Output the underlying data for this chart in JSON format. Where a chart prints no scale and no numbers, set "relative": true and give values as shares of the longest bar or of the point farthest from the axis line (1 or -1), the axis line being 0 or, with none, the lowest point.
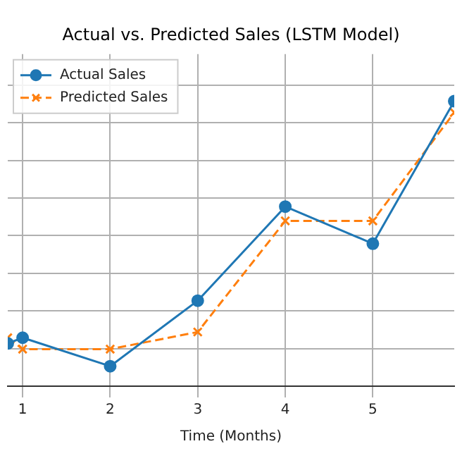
{
  "chart_data": {
    "type": "line",
    "title": "Actual vs. Predicted Sales (LSTM Model)",
    "xlabel": "Time (Months)",
    "relative": true,
    "xlim": [
      0.83,
      5.93
    ],
    "xticks": [
      1,
      2,
      3,
      4,
      5
    ],
    "grid": true,
    "legend": "top left",
    "series": [
      {
        "name": "Actual Sales",
        "color": "#1f77b4",
        "marker": "circle",
        "line_style": "solid",
        "x": [
          0.83,
          1,
          2,
          3,
          4,
          5,
          5.93
        ],
        "values": [
          0.15,
          0.17,
          0.07,
          0.3,
          0.63,
          0.5,
          1
        ]
      },
      {
        "name": "Predicted Sales",
        "color": "#ff7f0e",
        "marker": "cross",
        "line_style": "dashed",
        "x": [
          0.83,
          1,
          2,
          3,
          4,
          5,
          5.93
        ],
        "values": [
          0.17,
          0.13,
          0.13,
          0.19,
          0.58,
          0.58,
          0.96
        ]
      }
    ]
  }
}
